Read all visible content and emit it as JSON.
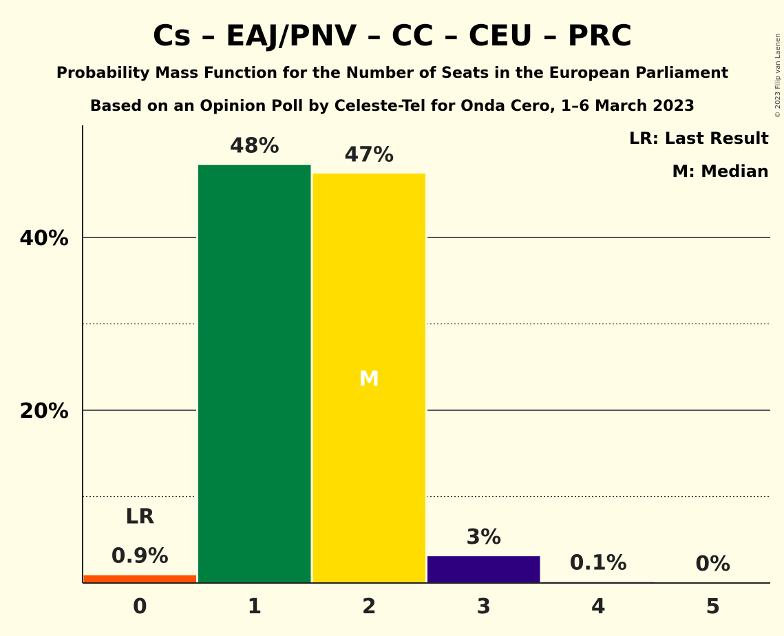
{
  "title": "Cs – EAJ/PNV – CC – CEU – PRC",
  "subtitle1": "Probability Mass Function for the Number of Seats in the European Parliament",
  "subtitle2": "Based on an Opinion Poll by Celeste-Tel for Onda Cero, 1–6 March 2023",
  "copyright": "© 2023 Filip van Laenen",
  "legend": {
    "lr": "LR: Last Result",
    "m": "M: Median"
  },
  "markers": {
    "lr": "LR",
    "median": "M"
  },
  "colors": {
    "background": "#FFFDE6",
    "lr_bar": "#FF5000",
    "bar1": "#008040",
    "bar2": "#FFDD00",
    "bar3": "#2E0080"
  },
  "chart_data": {
    "type": "bar",
    "categories": [
      "0",
      "1",
      "2",
      "3",
      "4",
      "5"
    ],
    "values": [
      0.9,
      48.4,
      47.4,
      3.1,
      0.1,
      0
    ],
    "labels": [
      "0.9%",
      "48%",
      "47%",
      "3%",
      "0.1%",
      "0%"
    ],
    "bar_colors": [
      "#FF5000",
      "#008040",
      "#FFDD00",
      "#2E0080",
      "#2E0080",
      "#2E0080"
    ],
    "last_result_index": 0,
    "median_index": 2,
    "ylim": [
      0,
      53
    ],
    "yticks": [
      20,
      40
    ],
    "ytick_labels": [
      "20%",
      "40%"
    ],
    "minor_gridlines": [
      10,
      30
    ],
    "grid": true,
    "legend_placement": "top-right"
  }
}
